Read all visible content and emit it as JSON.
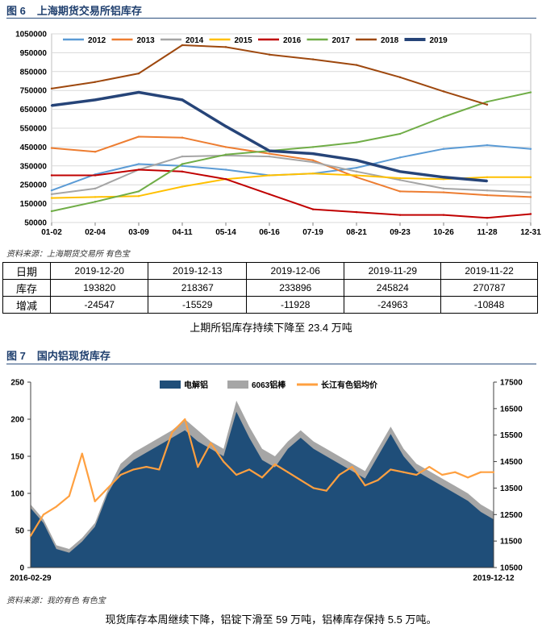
{
  "figure1": {
    "number": "图 6",
    "title": "上海期货交易所铝库存",
    "source": "资料来源：上海期货交易所   有色宝"
  },
  "figure2": {
    "number": "图 7",
    "title": "国内铝现货库存",
    "source": "资料来源：我的有色  有色宝"
  },
  "table": {
    "header_label": "日期",
    "dates": [
      "2019-12-20",
      "2019-12-13",
      "2019-12-06",
      "2019-11-29",
      "2019-11-22"
    ],
    "rows": [
      {
        "label": "库存",
        "values": [
          "193820",
          "218367",
          "233896",
          "245824",
          "270787"
        ]
      },
      {
        "label": "增减",
        "values": [
          "-24547",
          "-15529",
          "-11928",
          "-24963",
          "-10848"
        ]
      }
    ]
  },
  "captions": {
    "chart1": "上期所铝库存持续下降至 23.4 万吨",
    "chart2": "现货库存本周继续下降，铝锭下滑至 59 万吨，铝棒库存保持 5.5 万吨。"
  },
  "chart_data": [
    {
      "type": "line",
      "title": "上海期货交易所铝库存",
      "x": [
        "01-02",
        "02-04",
        "03-09",
        "04-11",
        "05-14",
        "06-16",
        "07-19",
        "08-21",
        "09-23",
        "10-26",
        "11-28",
        "12-31"
      ],
      "ylim": [
        50000,
        1050000
      ],
      "yticks": [
        50000,
        150000,
        250000,
        350000,
        450000,
        550000,
        650000,
        750000,
        850000,
        950000,
        1050000
      ],
      "legend_position": "top",
      "series": [
        {
          "name": "2012",
          "color": "#5b9bd5",
          "values": [
            220000,
            305000,
            360000,
            350000,
            330000,
            300000,
            310000,
            340000,
            395000,
            440000,
            460000,
            440000
          ]
        },
        {
          "name": "2013",
          "color": "#ed7d31",
          "values": [
            445000,
            425000,
            505000,
            500000,
            450000,
            415000,
            380000,
            290000,
            215000,
            210000,
            195000,
            185000
          ]
        },
        {
          "name": "2014",
          "color": "#a5a5a5",
          "values": [
            200000,
            230000,
            330000,
            400000,
            405000,
            400000,
            370000,
            320000,
            275000,
            230000,
            220000,
            210000
          ]
        },
        {
          "name": "2015",
          "color": "#ffc000",
          "values": [
            180000,
            185000,
            190000,
            240000,
            280000,
            300000,
            310000,
            300000,
            285000,
            280000,
            290000,
            290000
          ]
        },
        {
          "name": "2016",
          "color": "#c00000",
          "values": [
            300000,
            300000,
            330000,
            320000,
            280000,
            200000,
            120000,
            105000,
            90000,
            90000,
            75000,
            95000
          ]
        },
        {
          "name": "2017",
          "color": "#70ad47",
          "values": [
            110000,
            160000,
            215000,
            360000,
            410000,
            430000,
            450000,
            475000,
            520000,
            610000,
            690000,
            740000
          ]
        },
        {
          "name": "2018",
          "color": "#9e480e",
          "values": [
            760000,
            795000,
            840000,
            990000,
            980000,
            940000,
            915000,
            885000,
            820000,
            745000,
            675000,
            null
          ]
        },
        {
          "name": "2019",
          "color": "#264478",
          "values": [
            670000,
            700000,
            740000,
            700000,
            560000,
            430000,
            415000,
            380000,
            320000,
            290000,
            270000,
            null
          ]
        }
      ]
    },
    {
      "type": "area",
      "title": "国内铝现货库存",
      "x_start": "2016-02-29",
      "x_end": "2019-12-12",
      "ylim_left": [
        0,
        250
      ],
      "yticks_left": [
        0,
        50,
        100,
        150,
        200,
        250
      ],
      "ylim_right": [
        10500,
        17500
      ],
      "yticks_right": [
        10500,
        11500,
        12500,
        13500,
        14500,
        15500,
        16500,
        17500
      ],
      "legend_position": "top",
      "series": [
        {
          "name": "电解铝",
          "color": "#1f4e79",
          "axis": "left",
          "values": [
            80,
            60,
            25,
            20,
            35,
            55,
            100,
            130,
            145,
            155,
            165,
            175,
            185,
            170,
            160,
            150,
            210,
            175,
            145,
            135,
            160,
            175,
            160,
            150,
            140,
            130,
            120,
            150,
            180,
            150,
            130,
            120,
            110,
            100,
            90,
            75,
            65
          ]
        },
        {
          "name": "6063铝棒",
          "color": "#a6a6a6",
          "axis": "left",
          "values": [
            85,
            65,
            30,
            25,
            40,
            60,
            105,
            140,
            155,
            165,
            175,
            185,
            200,
            185,
            170,
            160,
            225,
            190,
            160,
            150,
            170,
            185,
            170,
            160,
            150,
            140,
            130,
            160,
            190,
            160,
            140,
            130,
            120,
            110,
            100,
            85,
            75
          ]
        },
        {
          "name": "长江有色铝均价",
          "color": "#ffa040",
          "axis": "right",
          "values": [
            11700,
            12500,
            12800,
            13200,
            14800,
            13000,
            13500,
            14000,
            14200,
            14300,
            14200,
            15600,
            16100,
            14300,
            15200,
            14500,
            14000,
            14200,
            13900,
            14400,
            14100,
            13800,
            13500,
            13400,
            14000,
            14300,
            13600,
            13800,
            14200,
            14100,
            14000,
            14300,
            14000,
            14100,
            13900,
            14100,
            14100
          ]
        }
      ]
    }
  ]
}
